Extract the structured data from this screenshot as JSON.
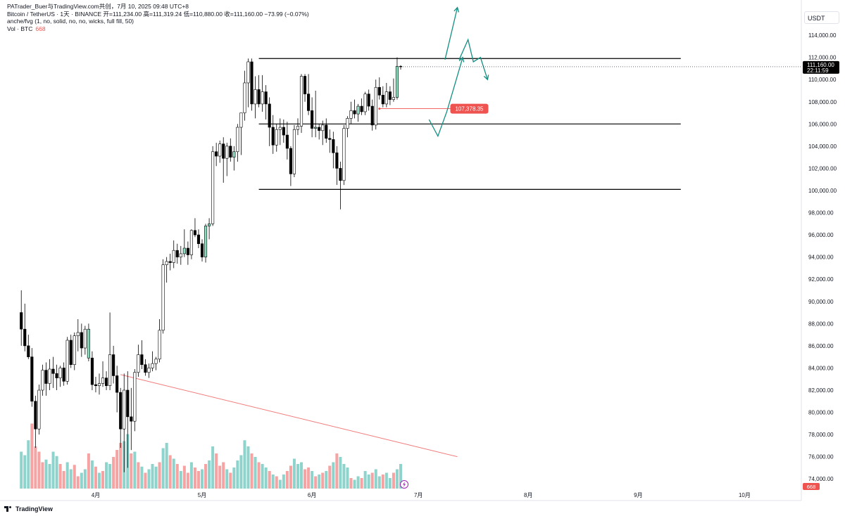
{
  "header": {
    "line1": "PATrader_Buer与TradingView.com共创，7月 10, 2025 09:48 UTC+8",
    "line2": "Bitcoin / TetherUS · 1天 · BINANCE  开=111,234.00  高=111,319.24  低=110,880.00  收=111,160.00  −73.99 (−0.07%)",
    "line3": "anche/fvg (1, no, solid, no, no, wicks, full fill, 50)",
    "line4_label": "Vol · BTC",
    "line4_value": "668"
  },
  "price_axis": {
    "currency": "USDT",
    "last_price": "111,160.00",
    "countdown": "22:11:59",
    "marker_price": "107,378.35",
    "volume_tag": "668"
  },
  "footer": {
    "brand": "TradingView"
  },
  "colors": {
    "up": "#26a69a",
    "down": "#ef5350",
    "candle_body": "#000000",
    "up_highlight": "#89e0c0",
    "arrow": "#138f82",
    "trend": "#f37b7b"
  },
  "chart_data": {
    "type": "candlestick",
    "y_axis": {
      "ylim": [
        73000,
        115400
      ],
      "ticks": [
        74000,
        76000,
        78000,
        80000,
        82000,
        84000,
        86000,
        88000,
        90000,
        92000,
        94000,
        96000,
        98000,
        100000,
        102000,
        104000,
        106000,
        108000,
        110000,
        112000,
        114000
      ],
      "tick_labels": [
        "74,000.00",
        "76,000.00",
        "78,000.00",
        "80,000.00",
        "82,000.00",
        "84,000.00",
        "86,000.00",
        "88,000.00",
        "90,000.00",
        "92,000.00",
        "94,000.00",
        "96,000.00",
        "98,000.00",
        "100,000.00",
        "102,000.00",
        "104,000.00",
        "106,000.00",
        "108,000.00",
        "110,000.00",
        "112,000.00",
        "114,000.00"
      ]
    },
    "x_axis": {
      "tick_labels": [
        "4月",
        "5月",
        "6月",
        "7月",
        "8月",
        "9月",
        "10月"
      ],
      "tick_days": [
        21,
        51,
        82,
        112,
        143,
        174,
        204
      ],
      "range_days": [
        -6,
        220
      ]
    },
    "start_day": 0,
    "candles": [
      [
        89000,
        91000,
        86000,
        87500
      ],
      [
        87500,
        89800,
        85500,
        86000
      ],
      [
        86000,
        87000,
        84800,
        85000
      ],
      [
        85000,
        85800,
        80500,
        81000
      ],
      [
        81000,
        81500,
        76800,
        78500
      ],
      [
        78500,
        82500,
        78000,
        82000
      ],
      [
        82000,
        84300,
        81500,
        83800
      ],
      [
        83800,
        84500,
        81500,
        82600
      ],
      [
        82600,
        84800,
        82000,
        83900
      ],
      [
        83900,
        85000,
        82200,
        83500
      ],
      [
        83500,
        84300,
        82000,
        83100
      ],
      [
        83100,
        84200,
        82300,
        84000
      ],
      [
        84000,
        84500,
        82400,
        82800
      ],
      [
        82800,
        86800,
        82500,
        86500
      ],
      [
        86500,
        87000,
        84000,
        84300
      ],
      [
        84300,
        87200,
        83800,
        86900
      ],
      [
        86900,
        88400,
        85500,
        87200
      ],
      [
        87200,
        88000,
        85000,
        85800
      ],
      [
        85800,
        87800,
        85200,
        87500
      ],
      [
        87500,
        88000,
        84600,
        84900
      ],
      [
        84900,
        85500,
        82000,
        82500
      ],
      [
        82500,
        83200,
        81800,
        82400
      ],
      [
        82400,
        83500,
        81600,
        82600
      ],
      [
        82600,
        84600,
        82300,
        83100
      ],
      [
        83100,
        83700,
        82000,
        82400
      ],
      [
        82400,
        89000,
        82000,
        85200
      ],
      [
        85200,
        86000,
        82600,
        83300
      ],
      [
        83300,
        84200,
        80000,
        81800
      ],
      [
        81800,
        82200,
        76800,
        78500
      ],
      [
        78500,
        83500,
        74600,
        82000
      ],
      [
        82000,
        83700,
        75000,
        79600
      ],
      [
        79600,
        82200,
        76600,
        79200
      ],
      [
        79200,
        83900,
        78300,
        83600
      ],
      [
        83600,
        86100,
        83200,
        85200
      ],
      [
        85200,
        86500,
        83900,
        84300
      ],
      [
        84300,
        84800,
        83300,
        83600
      ],
      [
        83600,
        84400,
        83100,
        84000
      ],
      [
        84000,
        85500,
        83700,
        84400
      ],
      [
        84400,
        85000,
        83800,
        84800
      ],
      [
        84800,
        88400,
        84500,
        87400
      ],
      [
        87400,
        93800,
        87100,
        93300
      ],
      [
        93300,
        94000,
        91700,
        93600
      ],
      [
        93600,
        94300,
        92800,
        93500
      ],
      [
        93500,
        95500,
        93000,
        94600
      ],
      [
        94600,
        95200,
        93400,
        94000
      ],
      [
        94000,
        95000,
        93300,
        94300
      ],
      [
        94300,
        96500,
        94000,
        94800
      ],
      [
        94800,
        95400,
        93300,
        94200
      ],
      [
        94200,
        96500,
        93800,
        96400
      ],
      [
        96400,
        97500,
        95800,
        96000
      ],
      [
        96000,
        96500,
        94800,
        95200
      ],
      [
        95200,
        95600,
        93600,
        94000
      ],
      [
        94000,
        97000,
        93500,
        96800
      ],
      [
        96800,
        97500,
        95600,
        97000
      ],
      [
        97000,
        104000,
        96800,
        103500
      ],
      [
        103500,
        104300,
        102200,
        103100
      ],
      [
        103100,
        104500,
        102500,
        104200
      ],
      [
        104200,
        104800,
        100700,
        102900
      ],
      [
        102900,
        104300,
        101300,
        104000
      ],
      [
        104000,
        104700,
        102600,
        103000
      ],
      [
        103000,
        104000,
        101800,
        103500
      ],
      [
        103500,
        106000,
        102600,
        105700
      ],
      [
        105700,
        107000,
        103200,
        107000
      ],
      [
        107000,
        110800,
        106300,
        109700
      ],
      [
        109700,
        111900,
        107500,
        111600
      ],
      [
        111600,
        111900,
        107200,
        107800
      ],
      [
        107800,
        110300,
        106500,
        109100
      ],
      [
        109100,
        110400,
        107500,
        107800
      ],
      [
        107800,
        110400,
        107100,
        108900
      ],
      [
        108900,
        109500,
        106400,
        107800
      ],
      [
        107800,
        108400,
        104000,
        105700
      ],
      [
        105700,
        106800,
        103300,
        104100
      ],
      [
        104100,
        106000,
        103500,
        105500
      ],
      [
        105500,
        106500,
        104100,
        105700
      ],
      [
        105700,
        106400,
        104300,
        105000
      ],
      [
        105000,
        106200,
        102800,
        103800
      ],
      [
        103800,
        104000,
        100400,
        101500
      ],
      [
        101500,
        105900,
        101200,
        105500
      ],
      [
        105500,
        106500,
        105000,
        105800
      ],
      [
        105800,
        110500,
        105200,
        110300
      ],
      [
        110300,
        110500,
        108000,
        108700
      ],
      [
        108700,
        110500,
        106800,
        107200
      ],
      [
        107200,
        108400,
        104800,
        105600
      ],
      [
        105600,
        109000,
        104800,
        105700
      ],
      [
        105700,
        106000,
        104600,
        105400
      ],
      [
        105400,
        106300,
        104100,
        105900
      ],
      [
        105900,
        106500,
        104300,
        104700
      ],
      [
        104700,
        105500,
        103400,
        104600
      ],
      [
        104600,
        105300,
        102000,
        103400
      ],
      [
        103400,
        104000,
        100500,
        102000
      ],
      [
        102000,
        102600,
        98300,
        100900
      ],
      [
        100900,
        105900,
        100500,
        105600
      ],
      [
        105600,
        106700,
        104800,
        106500
      ],
      [
        106500,
        108000,
        106000,
        107200
      ],
      [
        107200,
        108200,
        106500,
        106900
      ],
      [
        106900,
        107800,
        106200,
        107600
      ],
      [
        107600,
        108300,
        106800,
        107100
      ],
      [
        107100,
        108900,
        106800,
        108700
      ],
      [
        108700,
        109100,
        107200,
        107600
      ],
      [
        107600,
        108200,
        105400,
        105900
      ],
      [
        105900,
        110000,
        105500,
        109300
      ],
      [
        109300,
        110200,
        108200,
        108600
      ],
      [
        108600,
        109400,
        107500,
        107800
      ],
      [
        107800,
        109700,
        107500,
        108900
      ],
      [
        108900,
        109400,
        107700,
        108200
      ],
      [
        108200,
        110100,
        108000,
        108400
      ],
      [
        108400,
        112000,
        108200,
        111200
      ],
      [
        111200,
        111300,
        110900,
        111160
      ]
    ],
    "highlight_days": [
      19,
      46,
      52,
      53,
      60,
      83,
      95,
      106
    ],
    "volumes": [
      [
        0,
        42,
        "up"
      ],
      [
        1,
        38,
        "up"
      ],
      [
        2,
        55,
        "up"
      ],
      [
        3,
        74,
        "down"
      ],
      [
        4,
        48,
        "down"
      ],
      [
        5,
        42,
        "down"
      ],
      [
        6,
        30,
        "down"
      ],
      [
        7,
        33,
        "up"
      ],
      [
        8,
        28,
        "up"
      ],
      [
        9,
        42,
        "up"
      ],
      [
        10,
        37,
        "up"
      ],
      [
        11,
        28,
        "down"
      ],
      [
        12,
        20,
        "down"
      ],
      [
        13,
        30,
        "up"
      ],
      [
        14,
        22,
        "up"
      ],
      [
        15,
        27,
        "down"
      ],
      [
        16,
        14,
        "down"
      ],
      [
        17,
        18,
        "up"
      ],
      [
        18,
        22,
        "up"
      ],
      [
        19,
        40,
        "down"
      ],
      [
        20,
        32,
        "up"
      ],
      [
        21,
        25,
        "down"
      ],
      [
        22,
        18,
        "up"
      ],
      [
        23,
        20,
        "down"
      ],
      [
        24,
        30,
        "up"
      ],
      [
        25,
        28,
        "up"
      ],
      [
        26,
        36,
        "down"
      ],
      [
        27,
        44,
        "down"
      ],
      [
        28,
        52,
        "down"
      ],
      [
        29,
        54,
        "up"
      ],
      [
        30,
        62,
        "up"
      ],
      [
        31,
        40,
        "down"
      ],
      [
        32,
        42,
        "up"
      ],
      [
        33,
        30,
        "down"
      ],
      [
        34,
        25,
        "up"
      ],
      [
        35,
        18,
        "down"
      ],
      [
        36,
        22,
        "up"
      ],
      [
        37,
        28,
        "up"
      ],
      [
        38,
        25,
        "up"
      ],
      [
        39,
        30,
        "down"
      ],
      [
        40,
        46,
        "up"
      ],
      [
        41,
        52,
        "up"
      ],
      [
        42,
        38,
        "down"
      ],
      [
        43,
        34,
        "up"
      ],
      [
        44,
        28,
        "down"
      ],
      [
        45,
        20,
        "up"
      ],
      [
        46,
        26,
        "down"
      ],
      [
        47,
        18,
        "down"
      ],
      [
        48,
        30,
        "up"
      ],
      [
        49,
        24,
        "down"
      ],
      [
        50,
        20,
        "down"
      ],
      [
        51,
        22,
        "up"
      ],
      [
        52,
        28,
        "down"
      ],
      [
        53,
        32,
        "up"
      ],
      [
        54,
        48,
        "up"
      ],
      [
        55,
        40,
        "down"
      ],
      [
        56,
        26,
        "down"
      ],
      [
        57,
        30,
        "down"
      ],
      [
        58,
        22,
        "up"
      ],
      [
        59,
        18,
        "down"
      ],
      [
        60,
        24,
        "up"
      ],
      [
        61,
        32,
        "up"
      ],
      [
        62,
        38,
        "up"
      ],
      [
        63,
        55,
        "up"
      ],
      [
        64,
        48,
        "up"
      ],
      [
        65,
        40,
        "down"
      ],
      [
        66,
        36,
        "up"
      ],
      [
        67,
        30,
        "down"
      ],
      [
        68,
        28,
        "up"
      ],
      [
        69,
        24,
        "up"
      ],
      [
        70,
        20,
        "down"
      ],
      [
        71,
        16,
        "up"
      ],
      [
        72,
        14,
        "down"
      ],
      [
        73,
        10,
        "up"
      ],
      [
        74,
        16,
        "up"
      ],
      [
        75,
        20,
        "down"
      ],
      [
        76,
        26,
        "down"
      ],
      [
        77,
        34,
        "up"
      ],
      [
        78,
        28,
        "up"
      ],
      [
        79,
        30,
        "up"
      ],
      [
        80,
        22,
        "down"
      ],
      [
        81,
        24,
        "down"
      ],
      [
        82,
        20,
        "up"
      ],
      [
        83,
        14,
        "down"
      ],
      [
        84,
        16,
        "up"
      ],
      [
        85,
        18,
        "down"
      ],
      [
        86,
        20,
        "up"
      ],
      [
        87,
        26,
        "down"
      ],
      [
        88,
        30,
        "up"
      ],
      [
        89,
        40,
        "down"
      ],
      [
        90,
        36,
        "up"
      ],
      [
        91,
        28,
        "up"
      ],
      [
        92,
        24,
        "up"
      ],
      [
        93,
        12,
        "down"
      ],
      [
        94,
        10,
        "up"
      ],
      [
        95,
        14,
        "up"
      ],
      [
        96,
        12,
        "down"
      ],
      [
        97,
        20,
        "up"
      ],
      [
        98,
        16,
        "up"
      ],
      [
        99,
        18,
        "down"
      ],
      [
        100,
        22,
        "up"
      ],
      [
        101,
        14,
        "up"
      ],
      [
        102,
        16,
        "down"
      ],
      [
        103,
        18,
        "up"
      ],
      [
        104,
        12,
        "up"
      ],
      [
        105,
        18,
        "down"
      ],
      [
        106,
        22,
        "up"
      ],
      [
        107,
        28,
        "up"
      ]
    ],
    "volume_max": 100000,
    "boxes_price_levels": [
      111900,
      106000,
      100100
    ],
    "level_lines": [
      {
        "price": 111900,
        "start_day": 67,
        "end_day": 186
      },
      {
        "price": 106000,
        "start_day": 67,
        "end_day": 186
      },
      {
        "price": 100100,
        "start_day": 67,
        "end_day": 186
      }
    ],
    "trendline": {
      "from": [
        28,
        83400
      ],
      "to": [
        123,
        76000
      ]
    },
    "marker_line": {
      "price": 107378.35,
      "from_day": 101,
      "to_day": 121
    },
    "projection_arrows": [
      [
        [
          115,
          106400
        ],
        [
          117.5,
          104900
        ],
        [
          120,
          107100
        ],
        [
          122.5,
          109800
        ],
        [
          124.5,
          112000
        ]
      ],
      [
        [
          119.5,
          111800
        ],
        [
          121,
          113800
        ],
        [
          123,
          116500
        ]
      ],
      [
        [
          123.5,
          111800
        ],
        [
          126,
          113600
        ],
        [
          127.5,
          111600
        ],
        [
          129.5,
          112000
        ],
        [
          131.5,
          110000
        ]
      ]
    ]
  }
}
